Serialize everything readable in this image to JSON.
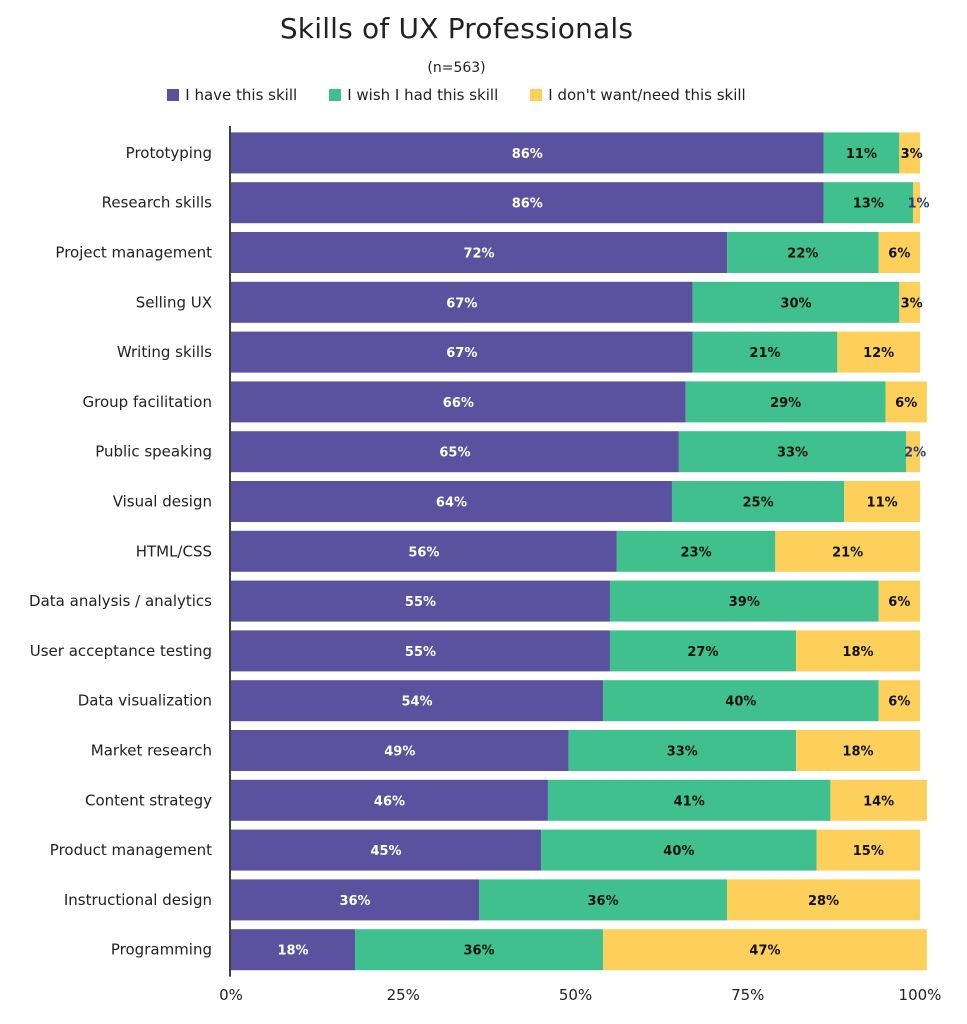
{
  "chart_data": {
    "type": "bar",
    "orientation": "horizontal",
    "stacked": true,
    "title": "Skills of UX Professionals",
    "subtitle": "(n=563)",
    "categories": [
      "Prototyping",
      "Research skills",
      "Project management",
      "Selling UX",
      "Writing skills",
      "Group facilitation",
      "Public speaking",
      "Visual design",
      "HTML/CSS",
      "Data analysis / analytics",
      "User acceptance testing",
      "Data visualization",
      "Market research",
      "Content strategy",
      "Product management",
      "Instructional design",
      "Programming"
    ],
    "series": [
      {
        "name": "I have this skill",
        "color": "#5a529e",
        "label_color": "#ffffff",
        "values": [
          86,
          86,
          72,
          67,
          67,
          66,
          65,
          64,
          56,
          55,
          55,
          54,
          49,
          46,
          45,
          36,
          18
        ]
      },
      {
        "name": "I wish I had this skill",
        "color": "#41c08f",
        "label_color": "#111111",
        "values": [
          11,
          13,
          22,
          30,
          21,
          29,
          33,
          25,
          23,
          39,
          27,
          40,
          33,
          41,
          40,
          36,
          36
        ]
      },
      {
        "name": "I don't want/need this skill",
        "color": "#fcd05a",
        "label_color": "#111111",
        "values": [
          3,
          1,
          6,
          3,
          12,
          6,
          2,
          11,
          21,
          6,
          18,
          6,
          18,
          14,
          15,
          28,
          47
        ]
      }
    ],
    "xlim": [
      0,
      100
    ],
    "x_ticks": [
      "0%",
      "25%",
      "50%",
      "75%",
      "100%"
    ],
    "legend_position": "top",
    "grid": false
  }
}
